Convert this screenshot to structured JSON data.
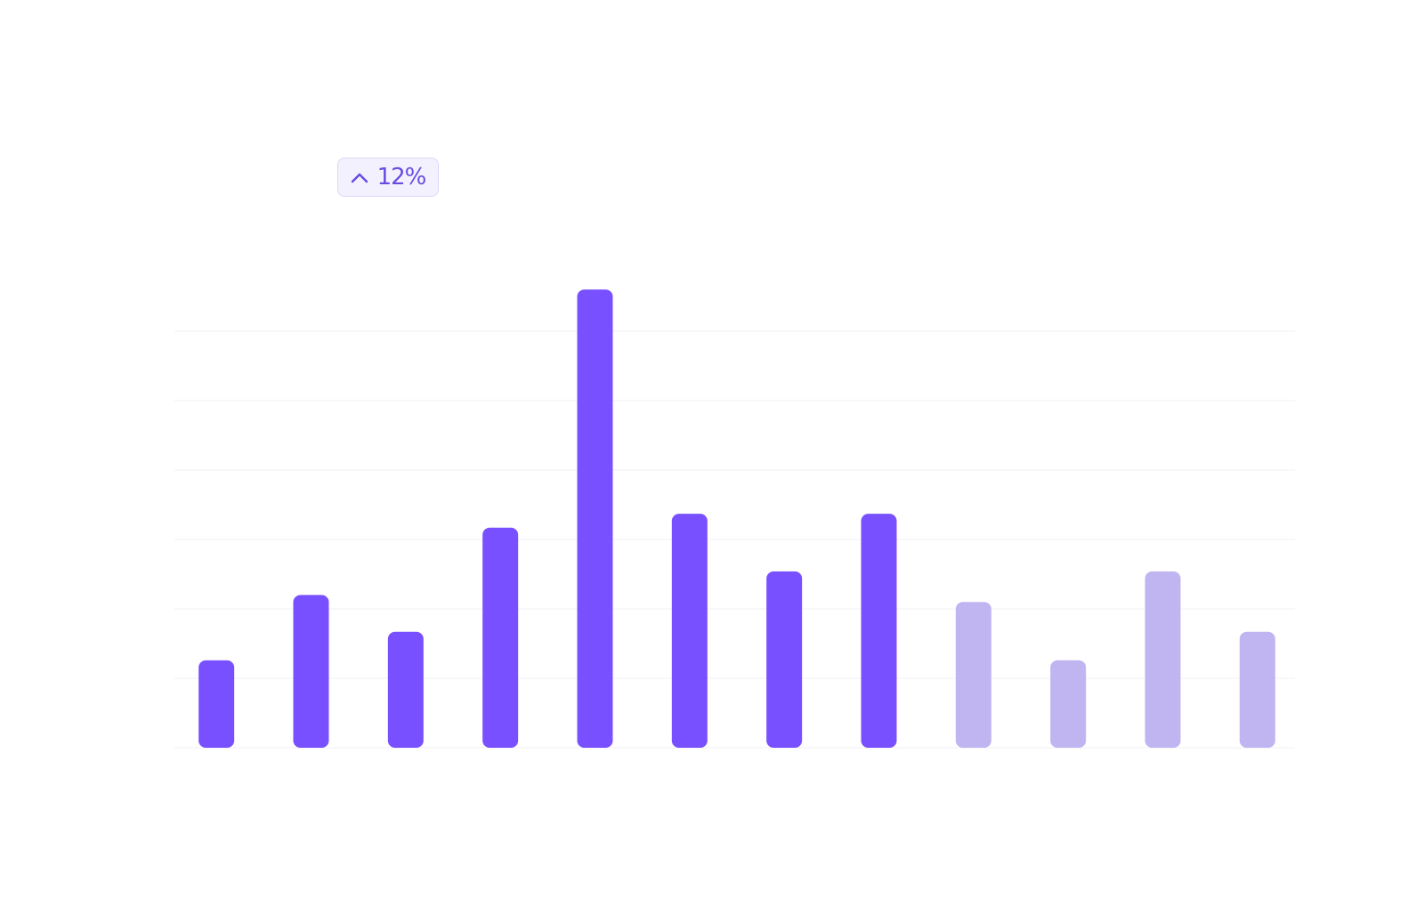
{
  "chart_data": {
    "type": "bar",
    "badge": "12%",
    "values": [
      1.26,
      2.2,
      1.67,
      3.17,
      6.6,
      3.37,
      2.54,
      3.37,
      2.1,
      1.26,
      2.54,
      1.67
    ],
    "colors": [
      "#7950ff",
      "#7950ff",
      "#7950ff",
      "#7950ff",
      "#7950ff",
      "#7950ff",
      "#7950ff",
      "#7950ff",
      "#c0b5f0",
      "#c0b5f0",
      "#c0b5f0",
      "#c0b5f0"
    ],
    "ylim": [
      0,
      7
    ],
    "yticks": [
      0,
      1,
      2,
      3,
      4,
      5,
      6
    ],
    "grid": true
  }
}
